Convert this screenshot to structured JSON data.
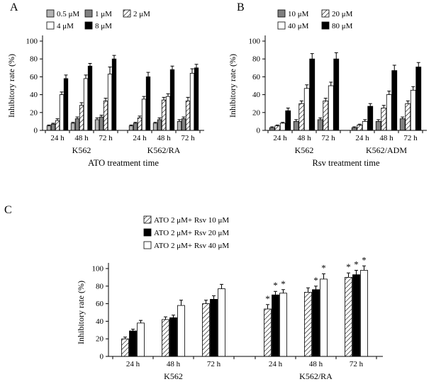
{
  "figure": {
    "background": "#ffffff",
    "text_color": "#000000"
  },
  "chart_data": [
    {
      "type": "bar",
      "panel_label": "A",
      "ylabel": "Inhibitory rate (%)",
      "xlabel": "ATO treatment time",
      "ylim": [
        0,
        100
      ],
      "yticks": [
        0,
        20,
        40,
        60,
        80,
        100
      ],
      "legend_position": "top-inside",
      "grid": false,
      "series": [
        {
          "name": "0.5 μM",
          "fill": "lightgray"
        },
        {
          "name": "1 μM",
          "fill": "gray"
        },
        {
          "name": "2 μM",
          "fill": "hatch"
        },
        {
          "name": "4 μM",
          "fill": "white"
        },
        {
          "name": "8 μM",
          "fill": "black"
        }
      ],
      "groups": [
        {
          "name": "K562",
          "clusters": [
            {
              "time": "24 h",
              "values": [
                5,
                7,
                11,
                40,
                58
              ],
              "errors": [
                1,
                1,
                2,
                3,
                4
              ]
            },
            {
              "time": "48 h",
              "values": [
                8,
                13,
                28,
                58,
                72
              ],
              "errors": [
                1,
                2,
                3,
                4,
                3
              ]
            },
            {
              "time": "72 h",
              "values": [
                12,
                15,
                33,
                63,
                80
              ],
              "errors": [
                2,
                2,
                3,
                8,
                4
              ]
            }
          ]
        },
        {
          "name": "K562/RA",
          "clusters": [
            {
              "time": "24 h",
              "values": [
                5,
                8,
                14,
                35,
                60
              ],
              "errors": [
                1,
                1,
                2,
                3,
                5
              ]
            },
            {
              "time": "48 h",
              "values": [
                8,
                12,
                34,
                38,
                68
              ],
              "errors": [
                1,
                2,
                3,
                3,
                4
              ]
            },
            {
              "time": "72 h",
              "values": [
                10,
                13,
                33,
                64,
                70
              ],
              "errors": [
                2,
                2,
                4,
                5,
                4
              ]
            }
          ]
        }
      ]
    },
    {
      "type": "bar",
      "panel_label": "B",
      "ylabel": "Inhibitory rate (%)",
      "xlabel": "Rsv treatment time",
      "ylim": [
        0,
        100
      ],
      "yticks": [
        0,
        20,
        40,
        60,
        80,
        100
      ],
      "legend_position": "top-inside",
      "grid": false,
      "series": [
        {
          "name": "10 μM",
          "fill": "gray"
        },
        {
          "name": "20 μM",
          "fill": "hatch"
        },
        {
          "name": "40 μM",
          "fill": "white"
        },
        {
          "name": "80 μM",
          "fill": "black"
        }
      ],
      "groups": [
        {
          "name": "K562",
          "clusters": [
            {
              "time": "24 h",
              "values": [
                3,
                5,
                8,
                22
              ],
              "errors": [
                1,
                1,
                1,
                3
              ]
            },
            {
              "time": "48 h",
              "values": [
                10,
                30,
                47,
                80
              ],
              "errors": [
                2,
                3,
                4,
                6
              ]
            },
            {
              "time": "72 h",
              "values": [
                12,
                33,
                50,
                80
              ],
              "errors": [
                2,
                3,
                4,
                7
              ]
            }
          ]
        },
        {
          "name": "K562/ADM",
          "clusters": [
            {
              "time": "24 h",
              "values": [
                3,
                6,
                10,
                27
              ],
              "errors": [
                1,
                1,
                2,
                3
              ]
            },
            {
              "time": "48 h",
              "values": [
                10,
                25,
                40,
                67
              ],
              "errors": [
                2,
                3,
                4,
                6
              ]
            },
            {
              "time": "72 h",
              "values": [
                13,
                30,
                45,
                71
              ],
              "errors": [
                2,
                3,
                4,
                5
              ]
            }
          ]
        }
      ]
    },
    {
      "type": "bar",
      "panel_label": "C",
      "ylabel": "Inhibitory rate (%)",
      "xlabel": "",
      "ylim": [
        0,
        100
      ],
      "yticks": [
        0,
        20,
        40,
        60,
        80,
        100
      ],
      "legend_position": "top-inside",
      "grid": false,
      "series": [
        {
          "name": "ATO 2 μM+ Rsv 10 μM",
          "fill": "hatch"
        },
        {
          "name": "ATO 2 μM+ Rsv 20 μM",
          "fill": "black"
        },
        {
          "name": "ATO 2 μM+ Rsv 40 μM",
          "fill": "white"
        }
      ],
      "groups": [
        {
          "name": "K562",
          "clusters": [
            {
              "time": "24 h",
              "values": [
                20,
                29,
                38
              ],
              "errors": [
                2,
                2,
                3
              ]
            },
            {
              "time": "48 h",
              "values": [
                42,
                44,
                58
              ],
              "errors": [
                3,
                3,
                6
              ]
            },
            {
              "time": "72 h",
              "values": [
                60,
                65,
                77
              ],
              "errors": [
                4,
                4,
                5
              ]
            }
          ]
        },
        {
          "name": "K562/RA",
          "clusters": [
            {
              "time": "24 h",
              "values": [
                54,
                70,
                72
              ],
              "errors": [
                5,
                4,
                4
              ],
              "stars": [
                "*",
                "*",
                "*"
              ]
            },
            {
              "time": "48 h",
              "values": [
                73,
                76,
                88
              ],
              "errors": [
                5,
                4,
                6
              ],
              "stars": [
                "",
                "*",
                "*"
              ]
            },
            {
              "time": "72 h",
              "values": [
                90,
                93,
                98
              ],
              "errors": [
                5,
                5,
                5
              ],
              "stars": [
                "*",
                "*",
                "*"
              ]
            }
          ]
        }
      ]
    }
  ]
}
